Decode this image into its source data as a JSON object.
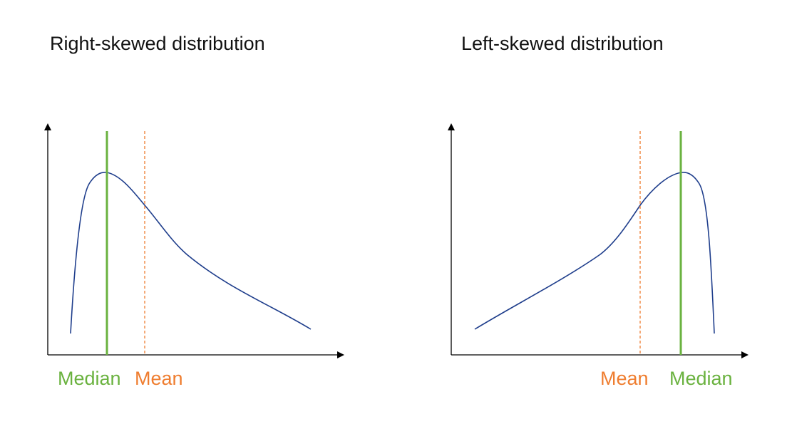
{
  "colors": {
    "curve": "#1f3e8c",
    "median": "#6ab23f",
    "mean": "#ef7d2f",
    "axis": "#000000",
    "text": "#111111"
  },
  "panels": [
    {
      "title": "Right-skewed distribution",
      "median_label": "Median",
      "mean_label": "Mean"
    },
    {
      "title": "Left-skewed distribution",
      "median_label": "Median",
      "mean_label": "Mean"
    }
  ]
}
